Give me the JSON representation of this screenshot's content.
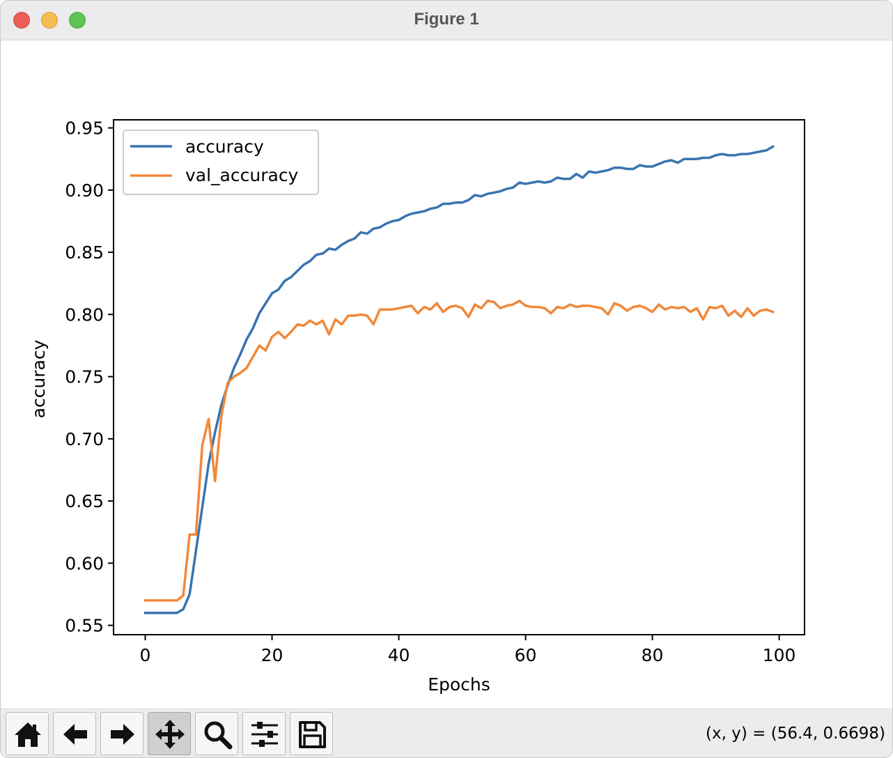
{
  "window": {
    "title": "Figure 1"
  },
  "toolbar": {
    "buttons": [
      {
        "name": "home",
        "icon": "home-icon"
      },
      {
        "name": "back",
        "icon": "arrow-left-icon"
      },
      {
        "name": "forward",
        "icon": "arrow-right-icon"
      },
      {
        "name": "pan",
        "icon": "move-icon",
        "active": true
      },
      {
        "name": "zoom",
        "icon": "magnifier-icon"
      },
      {
        "name": "configure-subplots",
        "icon": "sliders-icon"
      },
      {
        "name": "save",
        "icon": "floppy-disk-icon"
      }
    ],
    "coords_text": "(x, y) = (56.4, 0.6698)"
  },
  "colors": {
    "accuracy": "#3a74b0",
    "val_accuracy": "#f0883a"
  },
  "chart_data": {
    "type": "line",
    "xlabel": "Epochs",
    "ylabel": "accuracy",
    "xlim": [
      -5,
      104
    ],
    "ylim": [
      0.5425,
      0.9565
    ],
    "xticks": [
      0,
      20,
      40,
      60,
      80,
      100
    ],
    "xtick_labels": [
      "0",
      "20",
      "40",
      "60",
      "80",
      "100"
    ],
    "yticks": [
      0.55,
      0.6,
      0.65,
      0.7,
      0.75,
      0.8,
      0.85,
      0.9,
      0.95
    ],
    "ytick_labels": [
      "0.55",
      "0.60",
      "0.65",
      "0.70",
      "0.75",
      "0.80",
      "0.85",
      "0.90",
      "0.95"
    ],
    "legend": "upper-left",
    "grid": false,
    "x": [
      0,
      1,
      2,
      3,
      4,
      5,
      6,
      7,
      8,
      9,
      10,
      11,
      12,
      13,
      14,
      15,
      16,
      17,
      18,
      19,
      20,
      21,
      22,
      23,
      24,
      25,
      26,
      27,
      28,
      29,
      30,
      31,
      32,
      33,
      34,
      35,
      36,
      37,
      38,
      39,
      40,
      41,
      42,
      43,
      44,
      45,
      46,
      47,
      48,
      49,
      50,
      51,
      52,
      53,
      54,
      55,
      56,
      57,
      58,
      59,
      60,
      61,
      62,
      63,
      64,
      65,
      66,
      67,
      68,
      69,
      70,
      71,
      72,
      73,
      74,
      75,
      76,
      77,
      78,
      79,
      80,
      81,
      82,
      83,
      84,
      85,
      86,
      87,
      88,
      89,
      90,
      91,
      92,
      93,
      94,
      95,
      96,
      97,
      98,
      99
    ],
    "series": [
      {
        "name": "accuracy",
        "values": [
          0.56,
          0.56,
          0.56,
          0.56,
          0.56,
          0.56,
          0.563,
          0.575,
          0.61,
          0.645,
          0.68,
          0.705,
          0.727,
          0.743,
          0.757,
          0.768,
          0.78,
          0.789,
          0.801,
          0.809,
          0.817,
          0.82,
          0.827,
          0.83,
          0.835,
          0.84,
          0.843,
          0.848,
          0.849,
          0.853,
          0.852,
          0.856,
          0.859,
          0.861,
          0.866,
          0.865,
          0.869,
          0.87,
          0.873,
          0.875,
          0.876,
          0.879,
          0.881,
          0.882,
          0.883,
          0.885,
          0.886,
          0.889,
          0.889,
          0.89,
          0.89,
          0.892,
          0.896,
          0.895,
          0.897,
          0.898,
          0.899,
          0.901,
          0.902,
          0.906,
          0.905,
          0.906,
          0.907,
          0.906,
          0.907,
          0.91,
          0.909,
          0.909,
          0.913,
          0.91,
          0.915,
          0.914,
          0.915,
          0.916,
          0.918,
          0.918,
          0.917,
          0.917,
          0.92,
          0.919,
          0.919,
          0.921,
          0.923,
          0.924,
          0.922,
          0.925,
          0.925,
          0.925,
          0.926,
          0.926,
          0.928,
          0.929,
          0.928,
          0.928,
          0.929,
          0.929,
          0.93,
          0.931,
          0.932,
          0.935
        ]
      },
      {
        "name": "val_accuracy",
        "values": [
          0.57,
          0.57,
          0.57,
          0.57,
          0.57,
          0.57,
          0.574,
          0.623,
          0.623,
          0.695,
          0.716,
          0.666,
          0.718,
          0.745,
          0.75,
          0.753,
          0.757,
          0.766,
          0.775,
          0.771,
          0.782,
          0.786,
          0.781,
          0.786,
          0.792,
          0.791,
          0.795,
          0.792,
          0.795,
          0.784,
          0.796,
          0.792,
          0.799,
          0.799,
          0.8,
          0.799,
          0.792,
          0.804,
          0.804,
          0.804,
          0.805,
          0.806,
          0.807,
          0.801,
          0.806,
          0.804,
          0.809,
          0.802,
          0.806,
          0.807,
          0.805,
          0.798,
          0.808,
          0.805,
          0.811,
          0.81,
          0.805,
          0.807,
          0.808,
          0.811,
          0.807,
          0.806,
          0.806,
          0.805,
          0.801,
          0.806,
          0.805,
          0.808,
          0.806,
          0.807,
          0.807,
          0.806,
          0.805,
          0.8,
          0.809,
          0.807,
          0.803,
          0.806,
          0.807,
          0.805,
          0.802,
          0.808,
          0.804,
          0.806,
          0.805,
          0.806,
          0.802,
          0.805,
          0.796,
          0.806,
          0.805,
          0.807,
          0.799,
          0.803,
          0.798,
          0.805,
          0.799,
          0.803,
          0.804,
          0.802
        ]
      }
    ]
  }
}
